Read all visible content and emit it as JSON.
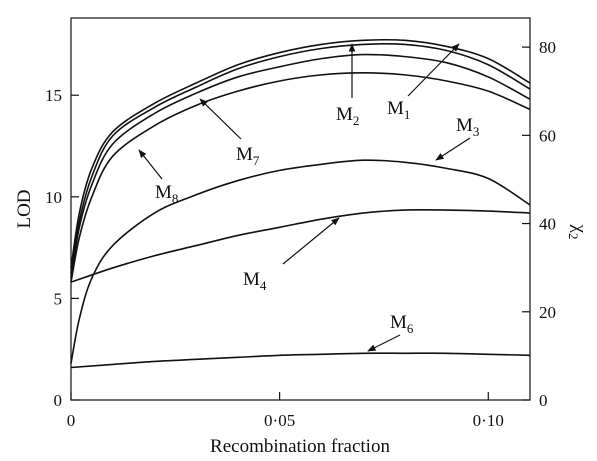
{
  "chart_data": {
    "type": "line",
    "xlabel": "Recombination fraction",
    "ylabel": "LOD",
    "y2label_main": "χ",
    "y2label_sub": "2",
    "xlim": [
      0,
      0.11
    ],
    "ylim": [
      0,
      18.8
    ],
    "y2lim": [
      0,
      86.6
    ],
    "x_ticks": [
      0,
      0.05,
      0.1
    ],
    "x_tick_labels": [
      "0",
      "0·05",
      "0·10"
    ],
    "y_ticks": [
      0,
      5,
      10,
      15
    ],
    "y_tick_labels": [
      "0",
      "5",
      "10",
      "15"
    ],
    "y2_ticks": [
      0,
      20,
      40,
      60,
      80
    ],
    "y2_tick_labels": [
      "0",
      "20",
      "40",
      "60",
      "80"
    ],
    "grid": false,
    "series": [
      {
        "name": "M1",
        "label_main": "M",
        "label_sub": "1",
        "x": [
          0,
          0.002,
          0.005,
          0.01,
          0.02,
          0.03,
          0.04,
          0.05,
          0.06,
          0.07,
          0.08,
          0.09,
          0.1,
          0.11
        ],
        "y": [
          6.2,
          8.8,
          11.0,
          13.0,
          14.4,
          15.4,
          16.3,
          16.9,
          17.3,
          17.5,
          17.5,
          17.2,
          16.5,
          15.3
        ]
      },
      {
        "name": "M2",
        "label_main": "M",
        "label_sub": "2",
        "x": [
          0,
          0.002,
          0.005,
          0.01,
          0.02,
          0.03,
          0.04,
          0.05,
          0.06,
          0.07,
          0.08,
          0.09,
          0.1,
          0.11
        ],
        "y": [
          6.5,
          9.2,
          11.4,
          13.2,
          14.6,
          15.6,
          16.5,
          17.1,
          17.5,
          17.7,
          17.7,
          17.4,
          16.8,
          15.6
        ]
      },
      {
        "name": "M7",
        "label_main": "M",
        "label_sub": "7",
        "x": [
          0,
          0.002,
          0.005,
          0.01,
          0.02,
          0.03,
          0.04,
          0.05,
          0.06,
          0.07,
          0.08,
          0.09,
          0.1,
          0.11
        ],
        "y": [
          6.0,
          8.5,
          10.6,
          12.6,
          14.1,
          15.1,
          15.9,
          16.4,
          16.8,
          17.0,
          16.9,
          16.6,
          15.9,
          14.8
        ]
      },
      {
        "name": "M8",
        "label_main": "M",
        "label_sub": "8",
        "x": [
          0,
          0.002,
          0.005,
          0.01,
          0.02,
          0.03,
          0.04,
          0.05,
          0.06,
          0.07,
          0.08,
          0.09,
          0.1,
          0.11
        ],
        "y": [
          5.8,
          8.0,
          10.0,
          12.0,
          13.5,
          14.5,
          15.2,
          15.7,
          16.0,
          16.1,
          16.0,
          15.7,
          15.2,
          14.3
        ]
      },
      {
        "name": "M3",
        "label_main": "M",
        "label_sub": "3",
        "x": [
          0,
          0.002,
          0.005,
          0.01,
          0.02,
          0.03,
          0.04,
          0.05,
          0.06,
          0.07,
          0.08,
          0.09,
          0.1,
          0.11
        ],
        "y": [
          1.8,
          4.0,
          6.0,
          7.6,
          9.2,
          10.1,
          10.8,
          11.3,
          11.6,
          11.8,
          11.7,
          11.4,
          10.9,
          9.6
        ]
      },
      {
        "name": "M4",
        "label_main": "M",
        "label_sub": "4",
        "x": [
          0,
          0.01,
          0.02,
          0.03,
          0.04,
          0.05,
          0.06,
          0.07,
          0.08,
          0.09,
          0.1,
          0.11
        ],
        "y": [
          5.8,
          6.5,
          7.1,
          7.6,
          8.1,
          8.5,
          8.9,
          9.2,
          9.35,
          9.35,
          9.3,
          9.2
        ]
      },
      {
        "name": "M6",
        "label_main": "M",
        "label_sub": "6",
        "x": [
          0,
          0.01,
          0.02,
          0.03,
          0.04,
          0.05,
          0.06,
          0.07,
          0.08,
          0.09,
          0.1,
          0.11
        ],
        "y": [
          1.6,
          1.75,
          1.9,
          2.0,
          2.1,
          2.2,
          2.25,
          2.3,
          2.3,
          2.3,
          2.25,
          2.2
        ]
      }
    ]
  }
}
